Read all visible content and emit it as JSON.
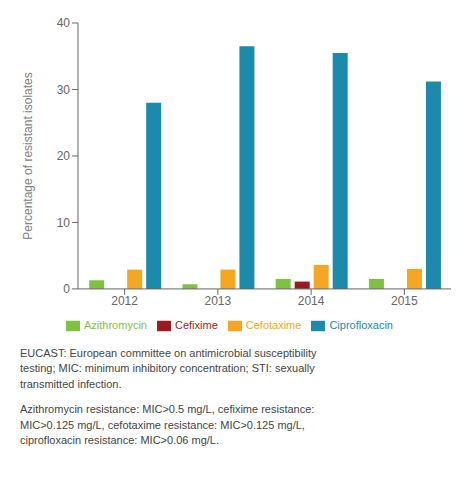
{
  "chart_data": {
    "type": "bar",
    "categories": [
      "2012",
      "2013",
      "2014",
      "2015"
    ],
    "ylabel": "Percentage of resistant isolates",
    "series": [
      {
        "name": "Azithromycin",
        "color": "#7fc241",
        "values": [
          1.3,
          0.7,
          1.5,
          1.5
        ]
      },
      {
        "name": "Cefixime",
        "color": "#9b1c20",
        "values": [
          0.0,
          0.0,
          1.1,
          0.0
        ]
      },
      {
        "name": "Cefotaxime",
        "color": "#f5a623",
        "values": [
          2.9,
          2.9,
          3.6,
          3.0
        ]
      },
      {
        "name": "Ciprofloxacin",
        "color": "#1b8aab",
        "values": [
          28.0,
          36.5,
          35.5,
          31.2
        ]
      }
    ],
    "ylim": [
      0,
      40
    ],
    "yticks": [
      0,
      10,
      20,
      30,
      40
    ],
    "grid": false,
    "legend": "bottom",
    "annotations": [
      "EUCAST: European committee on antimicrobial susceptibility\ntesting; MIC: minimum inhibitory concentration; STI: sexually\ntransmitted infection.",
      "Azithromycin resistance: MIC>0.5 mg/L, cefixime resistance:\nMIC>0.125 mg/L, cefotaxime resistance: MIC>0.125 mg/L,\nciprofloxacin resistance: MIC>0.06 mg/L."
    ]
  }
}
